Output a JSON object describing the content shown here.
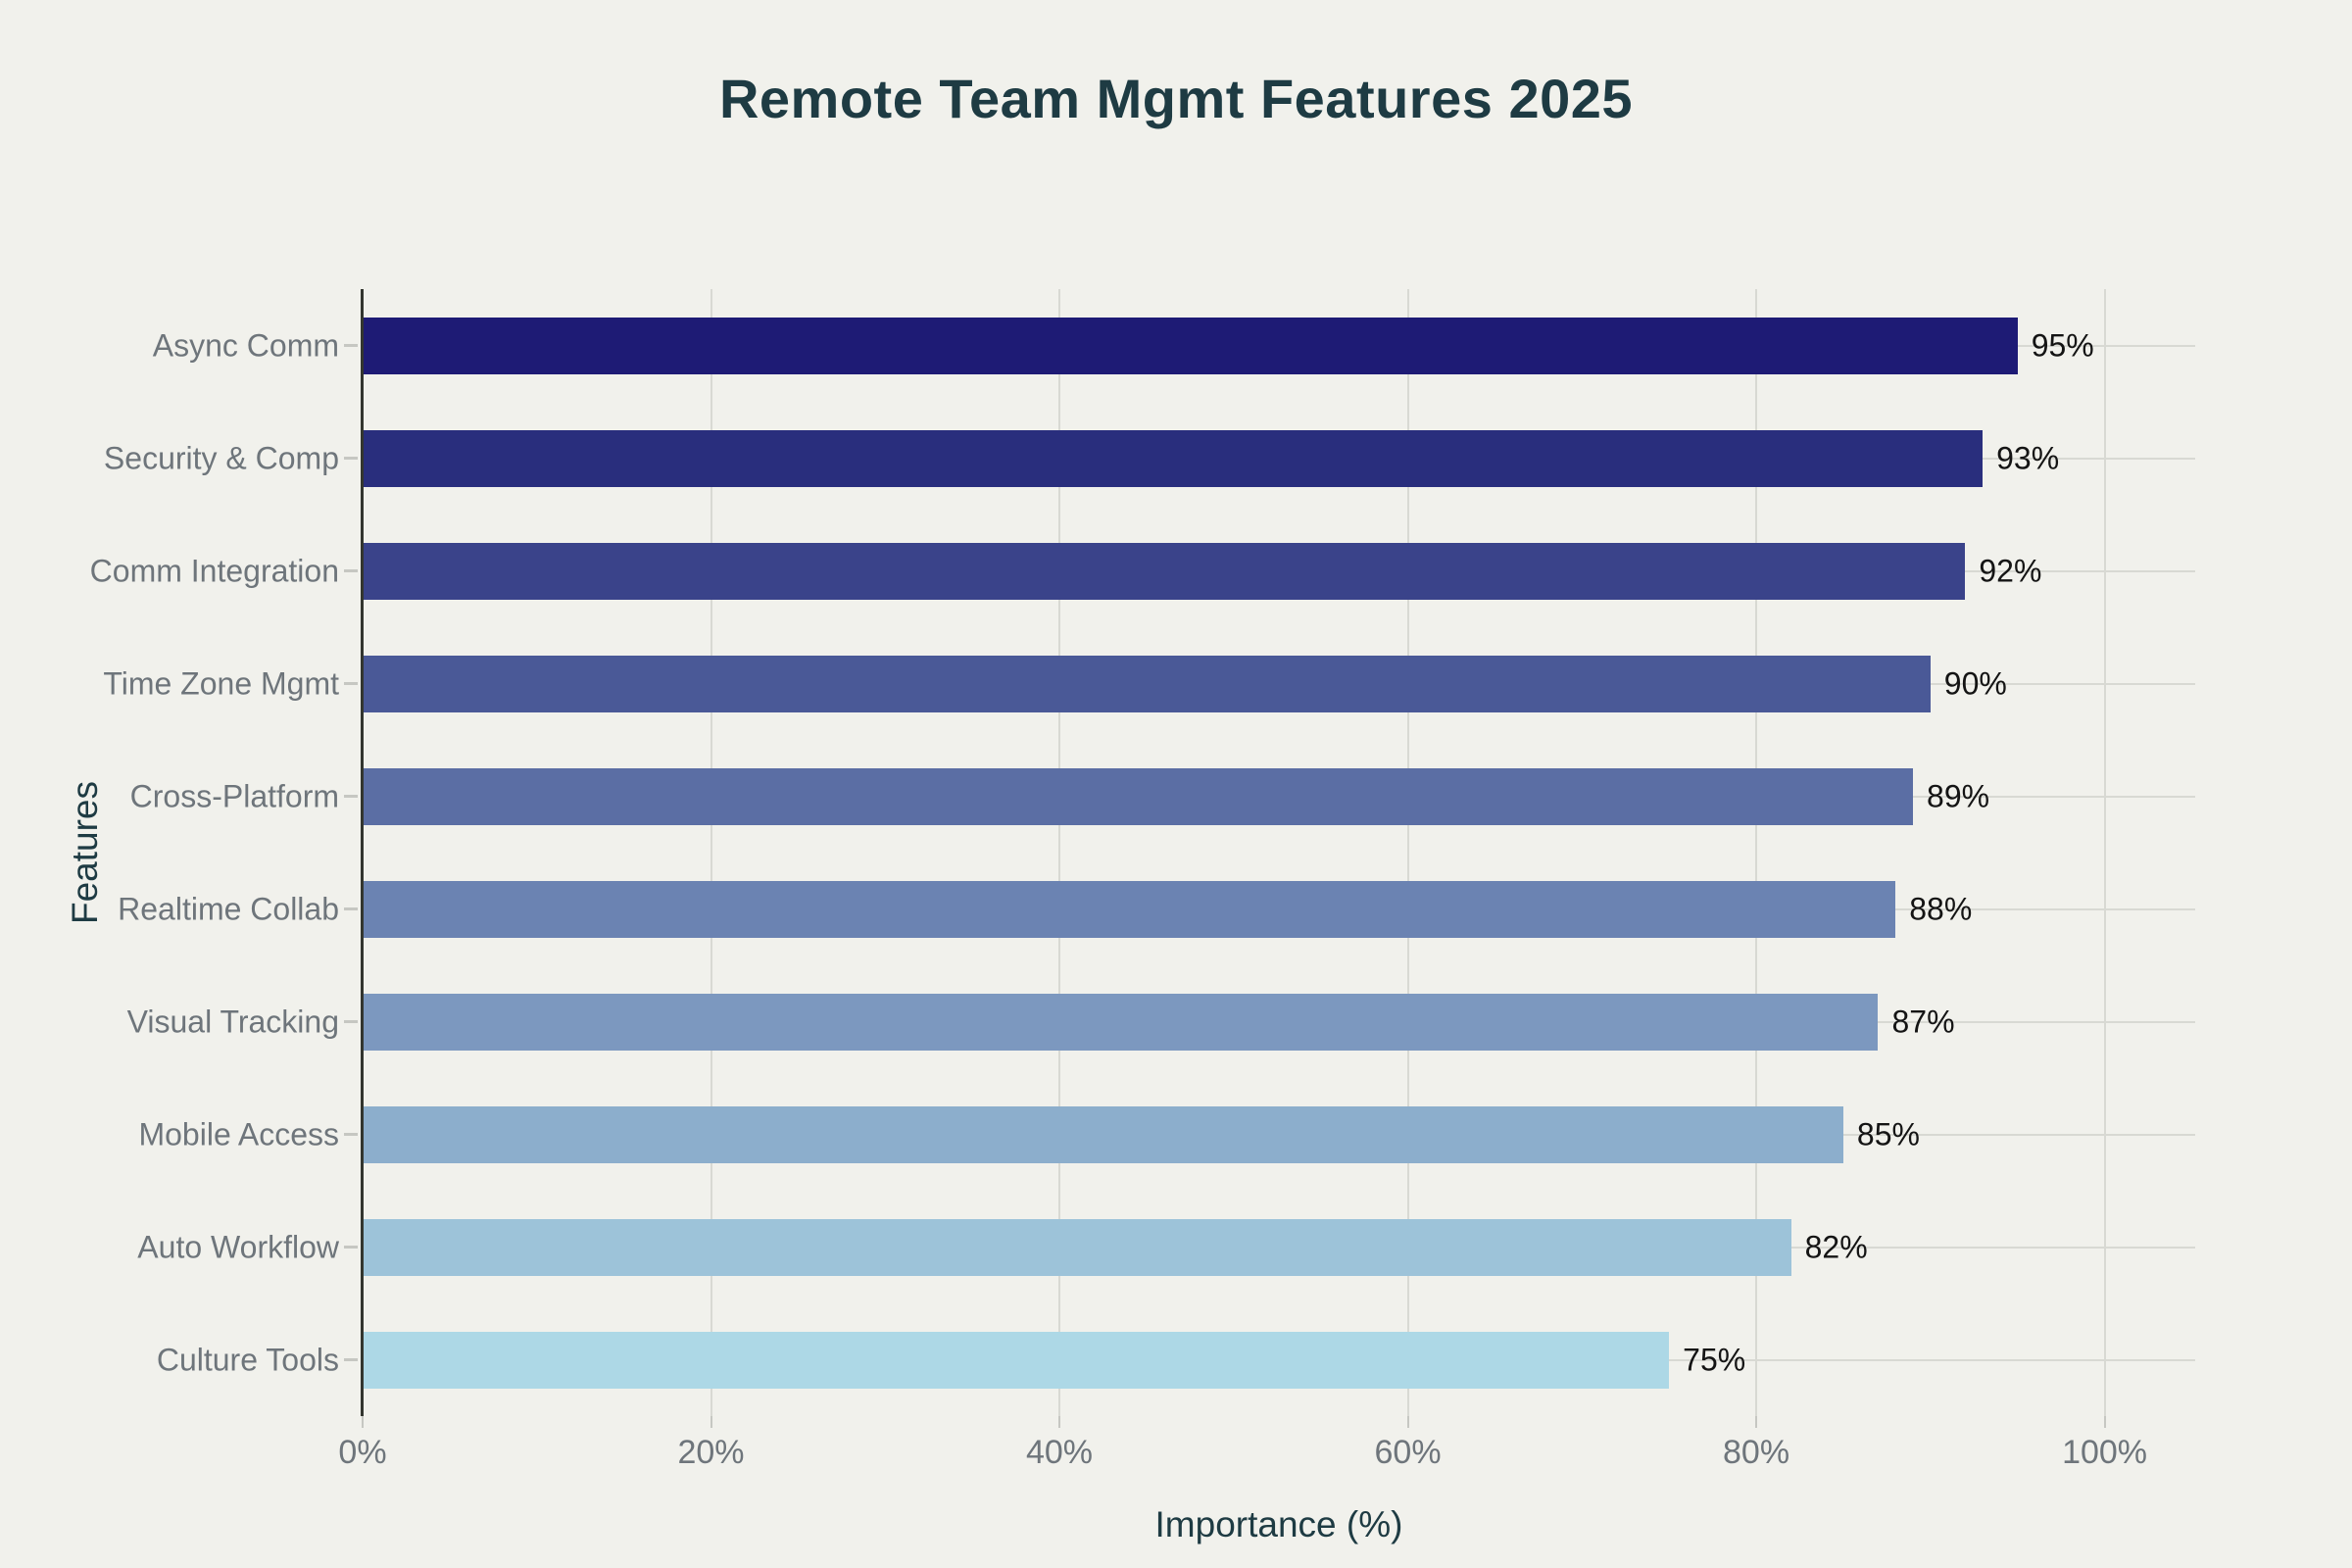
{
  "title": "Remote Team Mgmt Features 2025",
  "colors": {
    "background": "#F1F1EC",
    "title": "#1E3B43",
    "axis_label": "#1E3B43",
    "tick_label": "#6E757B",
    "value_label": "#141414",
    "gridline": "#D8D9D3",
    "spine": "#33362F"
  },
  "chart_data": {
    "type": "bar",
    "orientation": "horizontal",
    "title": "Remote Team Mgmt Features 2025",
    "xlabel": "Importance (%)",
    "ylabel": "Features",
    "categories": [
      "Async Comm",
      "Security & Comp",
      "Comm Integration",
      "Time Zone Mgmt",
      "Cross-Platform",
      "Realtime Collab",
      "Visual Tracking",
      "Mobile Access",
      "Auto Workflow",
      "Culture Tools"
    ],
    "values": [
      95,
      93,
      92,
      90,
      89,
      88,
      87,
      85,
      82,
      75
    ],
    "value_labels": [
      "95%",
      "93%",
      "92%",
      "90%",
      "89%",
      "88%",
      "87%",
      "85%",
      "82%",
      "75%"
    ],
    "bar_colors": [
      "#1E1B75",
      "#292E7D",
      "#3A438A",
      "#4A5997",
      "#5B6EA4",
      "#6B83B2",
      "#7C98BF",
      "#8CAECC",
      "#9DC3D9",
      "#ADD8E6"
    ],
    "x_ticks": [
      "0%",
      "20%",
      "40%",
      "60%",
      "80%",
      "100%"
    ],
    "x_tick_values": [
      0,
      20,
      40,
      60,
      80,
      100
    ],
    "xlim": [
      0,
      105.2
    ],
    "grid": true,
    "legend": false
  }
}
